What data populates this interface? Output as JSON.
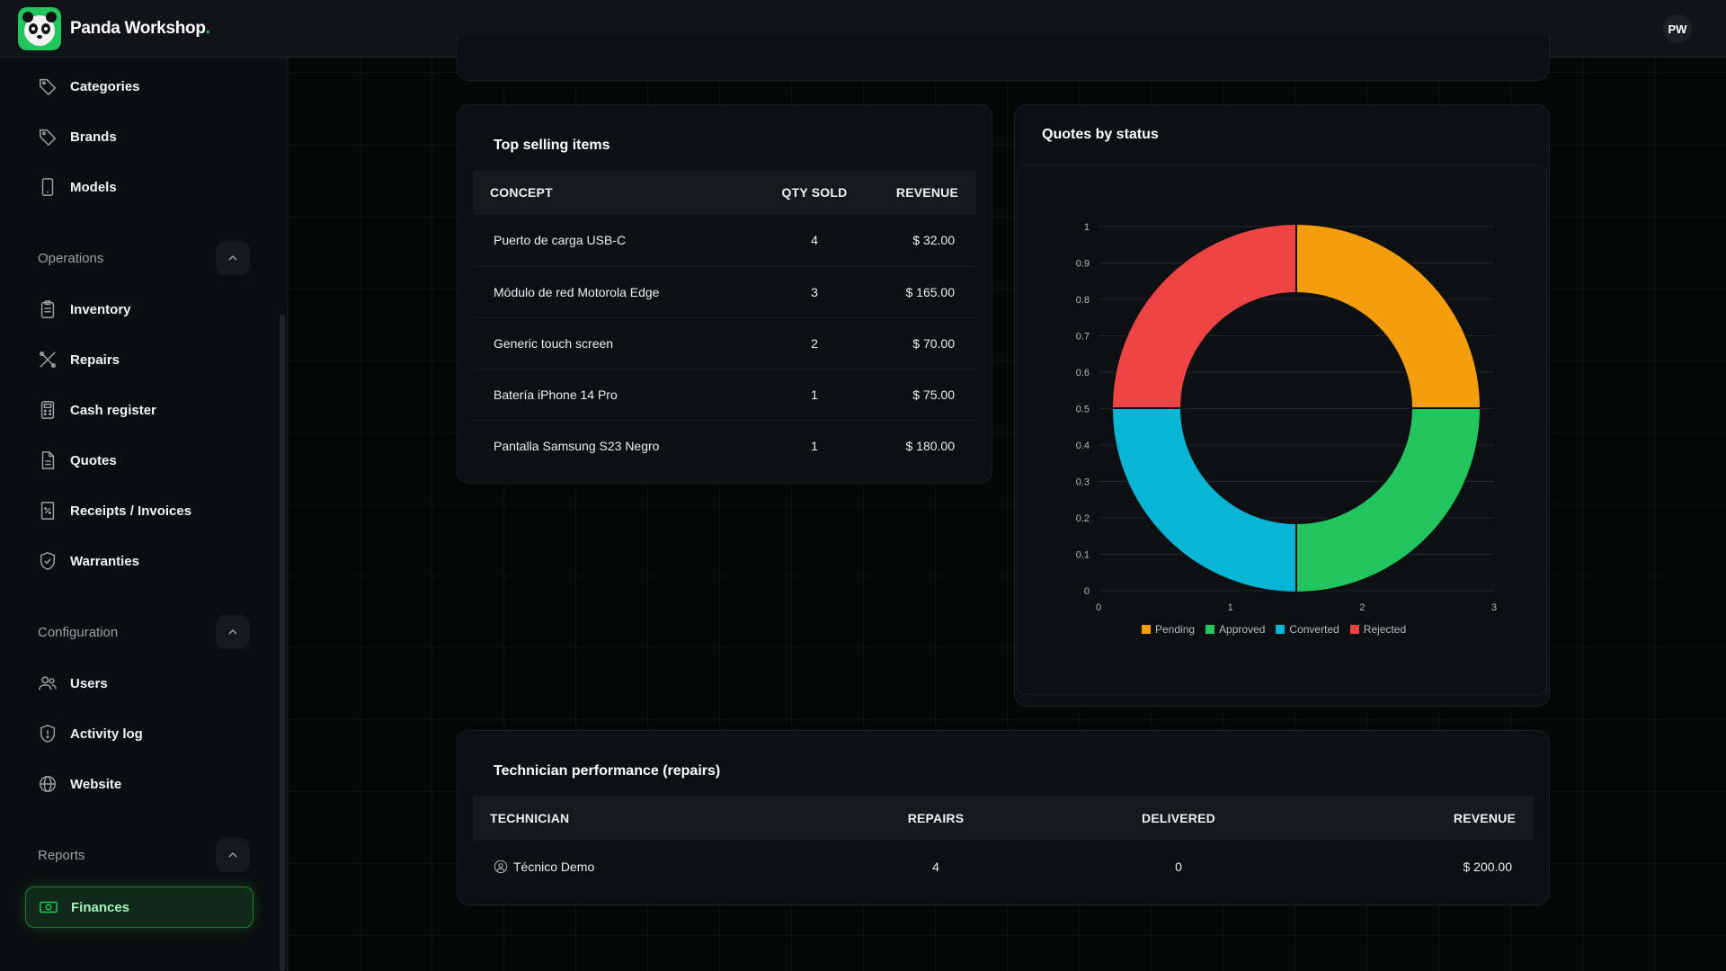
{
  "app": {
    "brand_name": "Panda Workshop",
    "brand_dot": ".",
    "user_initials": "PW"
  },
  "sidebar": {
    "items_top": [
      {
        "label": "Categories",
        "icon": "tag-icon"
      },
      {
        "label": "Brands",
        "icon": "tag-icon"
      },
      {
        "label": "Models",
        "icon": "phone-icon"
      }
    ],
    "operations": {
      "title": "Operations",
      "items": [
        {
          "label": "Inventory",
          "icon": "clipboard-icon"
        },
        {
          "label": "Repairs",
          "icon": "tools-icon"
        },
        {
          "label": "Cash register",
          "icon": "calculator-icon"
        },
        {
          "label": "Quotes",
          "icon": "document-icon"
        },
        {
          "label": "Receipts / Invoices",
          "icon": "receipt-icon"
        },
        {
          "label": "Warranties",
          "icon": "shield-check-icon"
        }
      ]
    },
    "configuration": {
      "title": "Configuration",
      "items": [
        {
          "label": "Users",
          "icon": "users-icon"
        },
        {
          "label": "Activity log",
          "icon": "shield-icon"
        },
        {
          "label": "Website",
          "icon": "globe-icon"
        }
      ]
    },
    "reports": {
      "title": "Reports",
      "items": [
        {
          "label": "Finances",
          "icon": "money-icon",
          "active": true
        }
      ]
    }
  },
  "top_selling": {
    "title": "Top selling items",
    "columns": [
      "CONCEPT",
      "QTY SOLD",
      "REVENUE"
    ],
    "rows": [
      {
        "concept": "Puerto de carga USB-C",
        "qty": "4",
        "revenue": "$ 32.00"
      },
      {
        "concept": "Módulo de red Motorola Edge",
        "qty": "3",
        "revenue": "$ 165.00"
      },
      {
        "concept": "Generic touch screen",
        "qty": "2",
        "revenue": "$ 70.00"
      },
      {
        "concept": "Batería iPhone 14 Pro",
        "qty": "1",
        "revenue": "$ 75.00"
      },
      {
        "concept": "Pantalla Samsung S23 Negro",
        "qty": "1",
        "revenue": "$ 180.00"
      }
    ]
  },
  "quotes": {
    "title": "Quotes by status",
    "chart_data": {
      "type": "pie",
      "title": "Quotes by status",
      "categories": [
        "Pending",
        "Approved",
        "Converted",
        "Rejected"
      ],
      "values": [
        1,
        1,
        1,
        1
      ],
      "colors": [
        "#f59e0b",
        "#22c55e",
        "#06b6d4",
        "#ef4444"
      ],
      "y_ticks": [
        "0",
        "0.1",
        "0.2",
        "0.3",
        "0.4",
        "0.5",
        "0.6",
        "0.7",
        "0.8",
        "0.9",
        "1"
      ],
      "x_ticks": [
        "0",
        "1",
        "2",
        "3"
      ],
      "ylim": [
        0,
        1
      ],
      "xlim": [
        0,
        3
      ],
      "legend": "bottom",
      "grid": true
    }
  },
  "technicians": {
    "title": "Technician performance (repairs)",
    "columns": [
      "TECHNICIAN",
      "REPAIRS",
      "DELIVERED",
      "REVENUE"
    ],
    "rows": [
      {
        "name": "Técnico Demo",
        "repairs": "4",
        "delivered": "0",
        "revenue": "$ 200.00"
      }
    ]
  }
}
